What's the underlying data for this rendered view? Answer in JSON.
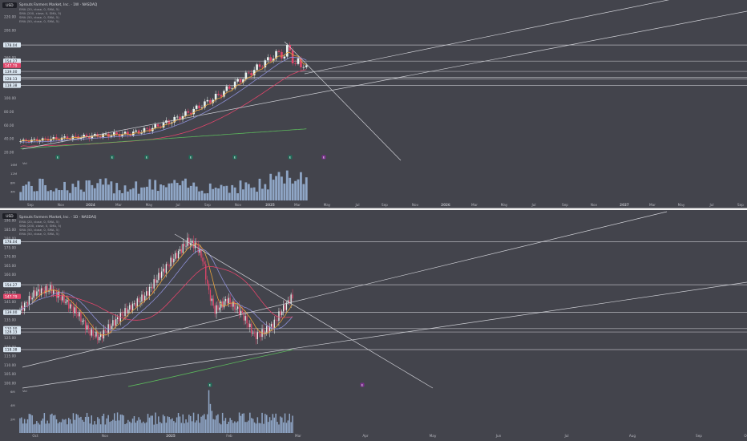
{
  "currency": "USD",
  "chart_data": [
    {
      "type": "candlestick",
      "title": "Sprouts Farmers Market, Inc. · 1W · NASDAQ",
      "indicators": [
        "EMA (20, close, 0, SMA, 5)",
        "SMA (200, close, 0, SMA, 5)",
        "SMA (50, close, 0, SMA, 5)",
        "EMA (50, close, 0, SMA, 5)"
      ],
      "y_ticks": [
        "220.00",
        "200.00",
        "180.00",
        "160.00",
        "140.00",
        "120.00",
        "100.00",
        "80.00",
        "60.00",
        "40.00",
        "20.00"
      ],
      "ylim": [
        10,
        235
      ],
      "price_levels": [
        {
          "label": "178.04",
          "value": 178.04
        },
        {
          "label": "154.27",
          "value": 154.27
        },
        {
          "label": "147.79",
          "value": 147.79,
          "style": "current"
        },
        {
          "label": "139.00",
          "value": 139.0
        },
        {
          "label": "130.00",
          "value": 130.0
        },
        {
          "label": "128.13",
          "value": 128.13
        },
        {
          "label": "118.38",
          "value": 118.38
        }
      ],
      "x_ticks": [
        "Sep",
        "Nov",
        "2024",
        "Mar",
        "May",
        "Jul",
        "Sep",
        "Nov",
        "2025",
        "Mar",
        "May",
        "Jul",
        "Sep",
        "Nov",
        "2026",
        "Mar",
        "May",
        "Jul",
        "Sep",
        "Nov",
        "2027",
        "Mar",
        "May",
        "Jul",
        "Sep"
      ],
      "volume_label": "Vol",
      "volume_ticks": [
        "16M",
        "12M",
        "8M",
        "4M"
      ],
      "event_markers": [
        "E",
        "E",
        "E",
        "E",
        "E",
        "E",
        "E"
      ]
    },
    {
      "type": "candlestick",
      "title": "Sprouts Farmers Market, Inc. · 1D · NASDAQ",
      "indicators": [
        "EMA (20, close, 0, SMA, 5)",
        "SMA (200, close, 0, SMA, 5)",
        "SMA (50, close, 0, SMA, 5)",
        "EMA (50, close, 0, SMA, 5)"
      ],
      "y_ticks": [
        "190.00",
        "185.00",
        "180.00",
        "175.00",
        "170.00",
        "165.00",
        "160.00",
        "155.00",
        "150.00",
        "145.00",
        "140.00",
        "135.00",
        "130.00",
        "125.00",
        "120.00",
        "115.00",
        "110.00",
        "105.00",
        "100.00"
      ],
      "ylim": [
        98,
        192
      ],
      "price_levels": [
        {
          "label": "178.04",
          "value": 178.04
        },
        {
          "label": "154.27",
          "value": 154.27
        },
        {
          "label": "147.79",
          "value": 147.79,
          "style": "current"
        },
        {
          "label": "139.00",
          "value": 139.0
        },
        {
          "label": "130.00",
          "value": 130.0
        },
        {
          "label": "128.13",
          "value": 128.13
        },
        {
          "label": "118.38",
          "value": 118.38
        }
      ],
      "x_ticks": [
        "Oct",
        "Nov",
        "2025",
        "Feb",
        "Mar",
        "Apr",
        "May",
        "Jun",
        "Jul",
        "Aug",
        "Sep",
        "Oct"
      ],
      "volume_label": "Vol",
      "volume_ticks": [
        "6M",
        "4M",
        "2M"
      ],
      "event_markers": [
        "E",
        "E"
      ]
    }
  ]
}
